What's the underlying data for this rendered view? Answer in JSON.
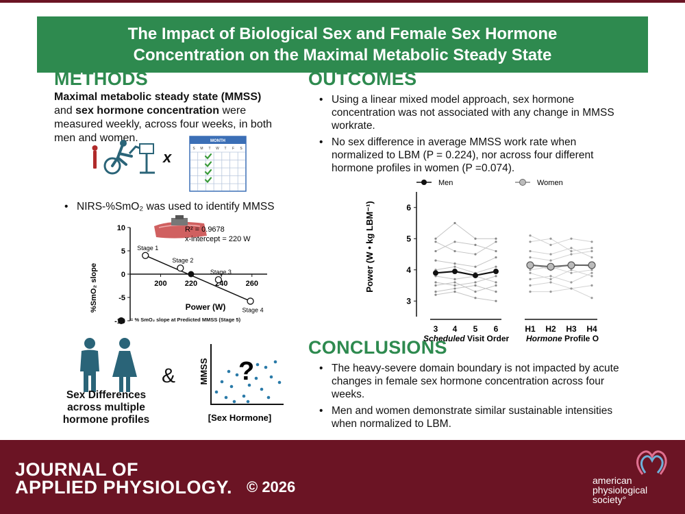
{
  "title": {
    "line1": "The Impact of Biological Sex and Female Sex Hormone",
    "line2": "Concentration on the Maximal Metabolic Steady State"
  },
  "methods": {
    "heading": "METHODS",
    "intro_bold1": "Maximal metabolic steady state (MMSS)",
    "intro_mid": "and",
    "intro_bold2": "sex hormone concentration",
    "intro_end": "were measured weekly, across four weeks, in both men and women.",
    "times_symbol": "x",
    "calendar_label": "MONTH",
    "calendar_days": [
      "S",
      "M",
      "T",
      "W",
      "T",
      "F",
      "S"
    ],
    "nirs_bullet": "NIRS-%SmO₂ was used to identify MMSS",
    "nirs_chart": {
      "r2": "R² = 0.9678",
      "intercept": "x-intercept = 220 W",
      "ylabel": "%SmO₂ slope",
      "xlabel": "Power (W)",
      "legend": "= % SmO₂ slope at Predicted MMSS (Stage 5)"
    },
    "sex_diff_label": "Sex Differences across multiple hormone profiles",
    "ampersand": "&",
    "scatter_ylabel": "MMSS",
    "scatter_xlabel": "[Sex Hormone]",
    "question": "?"
  },
  "outcomes": {
    "heading": "OUTCOMES",
    "bullets": [
      "Using a linear mixed model approach, sex hormone concentration was not associated with any change in MMSS workrate.",
      "No sex difference in average MMSS work rate when normalized to LBM (P = 0.224), nor across four different hormone profiles in women (P =0.074)."
    ],
    "chart_legend_men": "Men",
    "chart_legend_women": "Women",
    "chart_ylabel": "Power (W • kg LBM⁻¹)",
    "xgroup1_italic": "Scheduled",
    "xgroup1_rest": "Visit Order",
    "xgroup2_italic": "Hormone",
    "xgroup2_rest": "Profile Order"
  },
  "conclusions": {
    "heading": "CONCLUSIONS",
    "bullets": [
      "The heavy-severe domain boundary is not impacted by acute changes in female sex hormone concentration across four weeks.",
      "Men and women demonstrate similar sustainable intensities when normalized to LBM."
    ]
  },
  "footer": {
    "journal_line1": "JOURNAL OF",
    "journal_line2": "APPLIED PHYSIOLOGY.",
    "copyright": "© 2026",
    "society_line1": "american",
    "society_line2": "physiological",
    "society_line3": "society°"
  },
  "colors": {
    "green": "#2e8a4f",
    "maroon": "#6b1424",
    "teal": "#2a6478",
    "dot_blue": "#2a7aa8",
    "cal_blue": "#3b6fb6",
    "check_green": "#3a9b3a"
  },
  "chart_data": [
    {
      "type": "scatter",
      "title": "",
      "xlabel": "Power (W)",
      "ylabel": "%SmO₂ slope",
      "xlim": [
        180,
        270
      ],
      "ylim": [
        -10,
        10
      ],
      "x_ticks": [
        200,
        220,
        240,
        260
      ],
      "y_ticks": [
        -10,
        -5,
        0,
        5,
        10
      ],
      "points": [
        {
          "label": "Stage 1",
          "x": 190,
          "y": 4
        },
        {
          "label": "Stage 2",
          "x": 213,
          "y": 1.3
        },
        {
          "label": "Stage 3",
          "x": 238,
          "y": -1.2
        },
        {
          "label": "Stage 4",
          "x": 259,
          "y": -5.8
        }
      ],
      "predicted_point": {
        "x": 220,
        "y": 0
      },
      "fit_line": {
        "x": [
          190,
          259
        ],
        "y": [
          4,
          -5.8
        ]
      }
    },
    {
      "type": "line",
      "ylabel": "Power (W • kg LBM⁻¹)",
      "ylim": [
        2.5,
        6.5
      ],
      "y_ticks": [
        3,
        4,
        5,
        6
      ],
      "categories_men": [
        "3",
        "4",
        "5",
        "6"
      ],
      "categories_women": [
        "H1",
        "H2",
        "H3",
        "H4"
      ],
      "series": [
        {
          "name": "Men",
          "values": [
            3.9,
            3.95,
            3.82,
            3.95
          ]
        },
        {
          "name": "Women",
          "values": [
            4.15,
            4.1,
            4.15,
            4.15
          ]
        }
      ],
      "individual_men": [
        [
          5.0,
          5.5,
          5.0,
          5.0
        ],
        [
          4.9,
          4.6,
          4.5,
          4.9
        ],
        [
          4.6,
          4.9,
          4.8,
          4.6
        ],
        [
          4.3,
          4.2,
          4.1,
          4.4
        ],
        [
          4.0,
          4.1,
          3.9,
          4.1
        ],
        [
          3.8,
          3.7,
          3.8,
          3.6
        ],
        [
          3.6,
          3.5,
          3.6,
          3.8
        ],
        [
          3.5,
          3.6,
          3.3,
          3.5
        ],
        [
          3.3,
          3.4,
          3.5,
          3.3
        ],
        [
          3.2,
          3.3,
          3.1,
          3.0
        ]
      ],
      "individual_women": [
        [
          5.1,
          4.8,
          5.0,
          4.9
        ],
        [
          4.9,
          5.0,
          4.6,
          4.7
        ],
        [
          4.6,
          4.5,
          4.7,
          4.4
        ],
        [
          4.4,
          4.3,
          4.5,
          4.6
        ],
        [
          4.2,
          4.0,
          4.2,
          4.1
        ],
        [
          4.0,
          4.1,
          3.9,
          4.0
        ],
        [
          3.9,
          3.7,
          4.0,
          3.8
        ],
        [
          3.7,
          3.8,
          3.6,
          3.9
        ],
        [
          3.5,
          3.6,
          3.4,
          3.5
        ],
        [
          3.3,
          3.3,
          3.4,
          3.1
        ]
      ]
    }
  ]
}
